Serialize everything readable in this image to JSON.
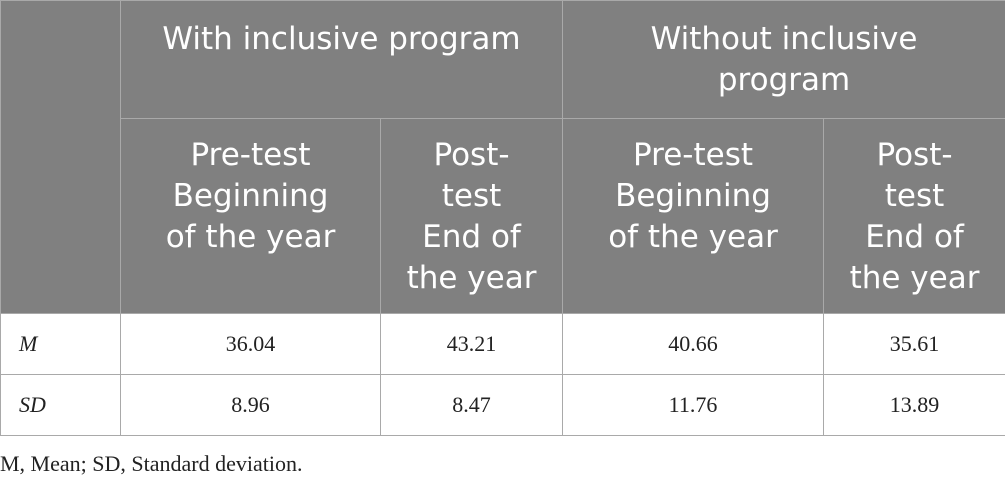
{
  "table": {
    "group_headers": [
      {
        "label": "With inclusive program"
      },
      {
        "label_lines": [
          "Without inclusive",
          "program"
        ]
      }
    ],
    "sub_headers": [
      {
        "lines": [
          "Pre-test",
          "Beginning",
          "of the year"
        ]
      },
      {
        "lines": [
          "Post-",
          "test",
          "End of",
          "the year"
        ]
      },
      {
        "lines": [
          "Pre-test",
          "Beginning",
          "of the year"
        ]
      },
      {
        "lines": [
          "Post-",
          "test",
          "End of",
          "the year"
        ]
      }
    ],
    "rows": [
      {
        "label": "M",
        "values": [
          "36.04",
          "43.21",
          "40.66",
          "35.61"
        ]
      },
      {
        "label": "SD",
        "values": [
          "8.96",
          "8.47",
          "11.76",
          "13.89"
        ]
      }
    ]
  },
  "footnote": "M, Mean; SD, Standard deviation."
}
